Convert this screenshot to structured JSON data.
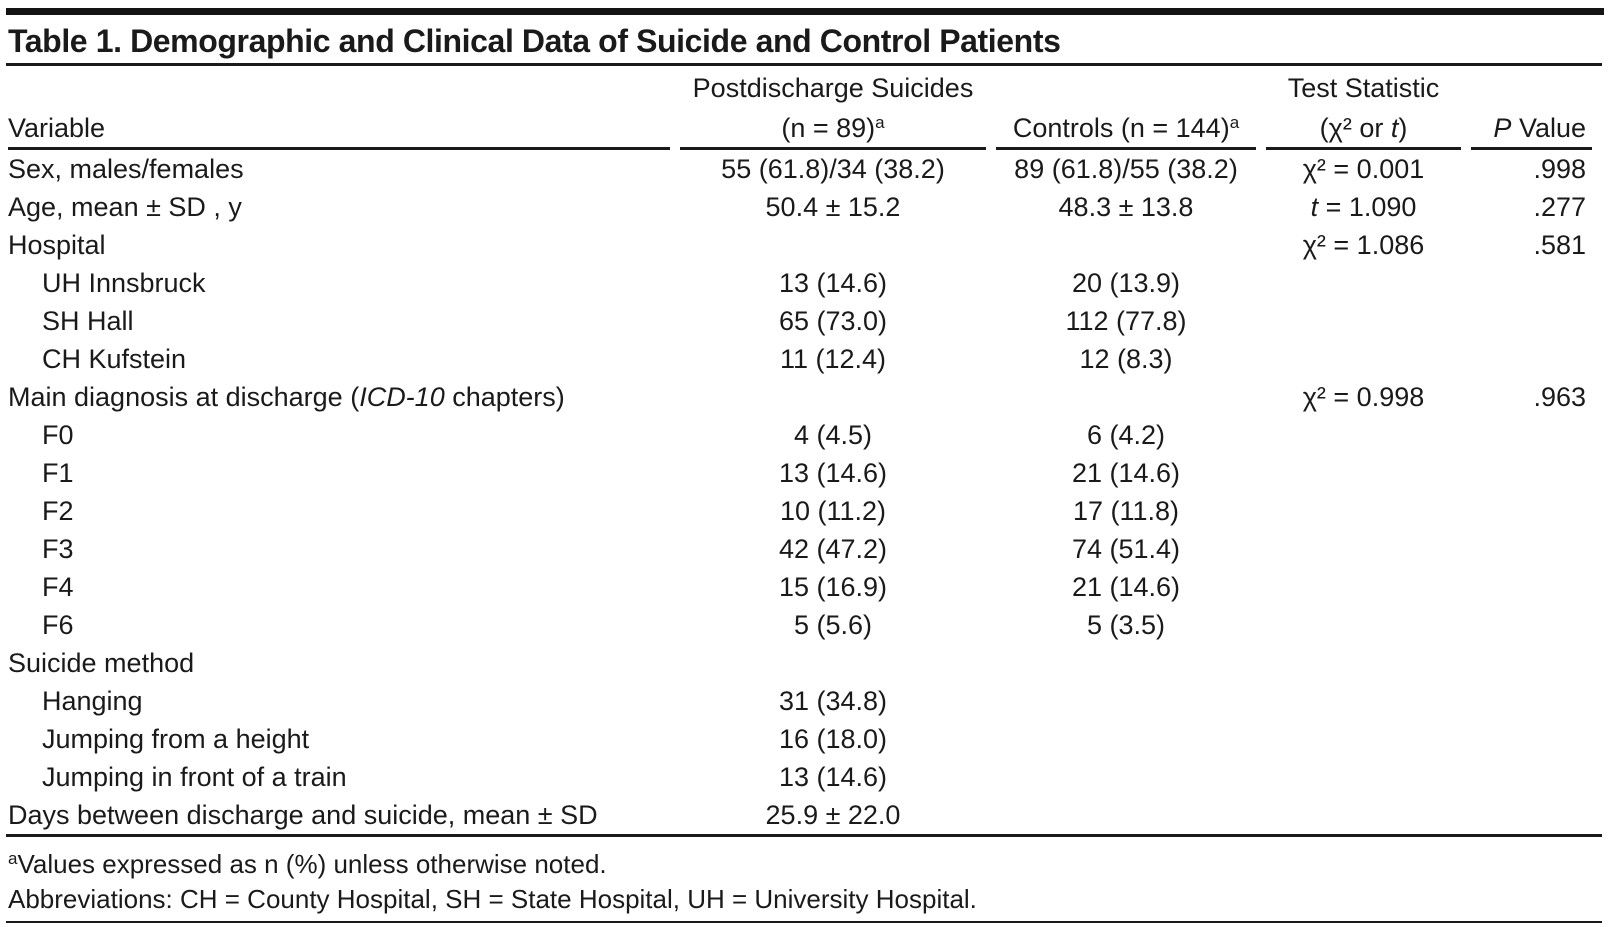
{
  "title": "Table 1. Demographic and Clinical Data of Suicide and Control Patients",
  "colors": {
    "ink": "#1a1a1a",
    "background": "#ffffff"
  },
  "header": {
    "variable": "Variable",
    "suicides_line1": "Postdischarge Suicides",
    "suicides_line2": "(n = 89)",
    "suicides_sup": "a",
    "controls": "Controls (n = 144)",
    "controls_sup": "a",
    "test_line1": "Test Statistic",
    "test_line2_pre": "(χ² or ",
    "test_line2_it": "t",
    "test_line2_post": ")",
    "p_it": "P",
    "p_rest": " Value"
  },
  "rows": [
    {
      "label_pre": "Sex, males/females",
      "suicides": "55 (61.8)/34 (38.2)",
      "controls": "89 (61.8)/55 (38.2)",
      "test_rest": "χ² = 0.001",
      "p": ".998"
    },
    {
      "label_pre": "Age, mean ± SD , y",
      "suicides": "50.4 ± 15.2",
      "controls": "48.3 ± 13.8",
      "test_it": "t",
      "test_rest": " = 1.090",
      "p": ".277"
    },
    {
      "label_pre": "Hospital",
      "test_rest": "χ² = 1.086",
      "p": ".581"
    },
    {
      "label_pre": "UH Innsbruck",
      "suicides": "13 (14.6)",
      "controls": "20 (13.9)"
    },
    {
      "label_pre": "SH Hall",
      "suicides": "65 (73.0)",
      "controls": "112 (77.8)"
    },
    {
      "label_pre": "CH Kufstein",
      "suicides": "11 (12.4)",
      "controls": "12 (8.3)"
    },
    {
      "label_pre": "Main diagnosis at discharge (",
      "label_it": "ICD-10",
      "label_post": " chapters)",
      "test_rest": "χ² = 0.998",
      "p": ".963"
    },
    {
      "label_pre": "F0",
      "suicides": "4 (4.5)",
      "controls": "6 (4.2)"
    },
    {
      "label_pre": "F1",
      "suicides": "13 (14.6)",
      "controls": "21 (14.6)"
    },
    {
      "label_pre": "F2",
      "suicides": "10 (11.2)",
      "controls": "17 (11.8)"
    },
    {
      "label_pre": "F3",
      "suicides": "42 (47.2)",
      "controls": "74 (51.4)"
    },
    {
      "label_pre": "F4",
      "suicides": "15 (16.9)",
      "controls": "21 (14.6)"
    },
    {
      "label_pre": "F6",
      "suicides": "5 (5.6)",
      "controls": "5 (3.5)"
    },
    {
      "label_pre": "Suicide method"
    },
    {
      "label_pre": "Hanging",
      "suicides": "31 (34.8)"
    },
    {
      "label_pre": "Jumping from a height",
      "suicides": "16 (18.0)"
    },
    {
      "label_pre": "Jumping in front of a train",
      "suicides": "13 (14.6)"
    },
    {
      "label_pre": "Days between discharge and suicide, mean ± SD",
      "suicides": "25.9 ± 22.0"
    }
  ],
  "footnotes": {
    "note1_sup": "a",
    "note1_text": "Values expressed as n (%) unless otherwise noted.",
    "note2_text": "Abbreviations: CH = County Hospital, SH = State Hospital, UH = University Hospital."
  }
}
